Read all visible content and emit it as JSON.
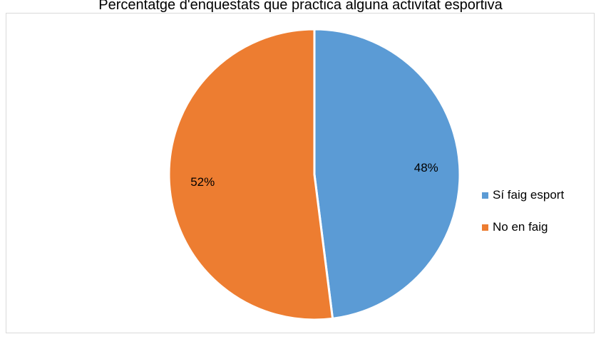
{
  "chart_data": {
    "type": "pie",
    "title": "Percentatge d'enquestats que practica alguna activitat esportiva",
    "series": [
      {
        "name": "Sí faig esport",
        "value": 48,
        "label": "48%",
        "color": "#5b9bd5"
      },
      {
        "name": "No en faig",
        "value": 52,
        "label": "52%",
        "color": "#ed7d31"
      }
    ],
    "legend_position": "right"
  }
}
